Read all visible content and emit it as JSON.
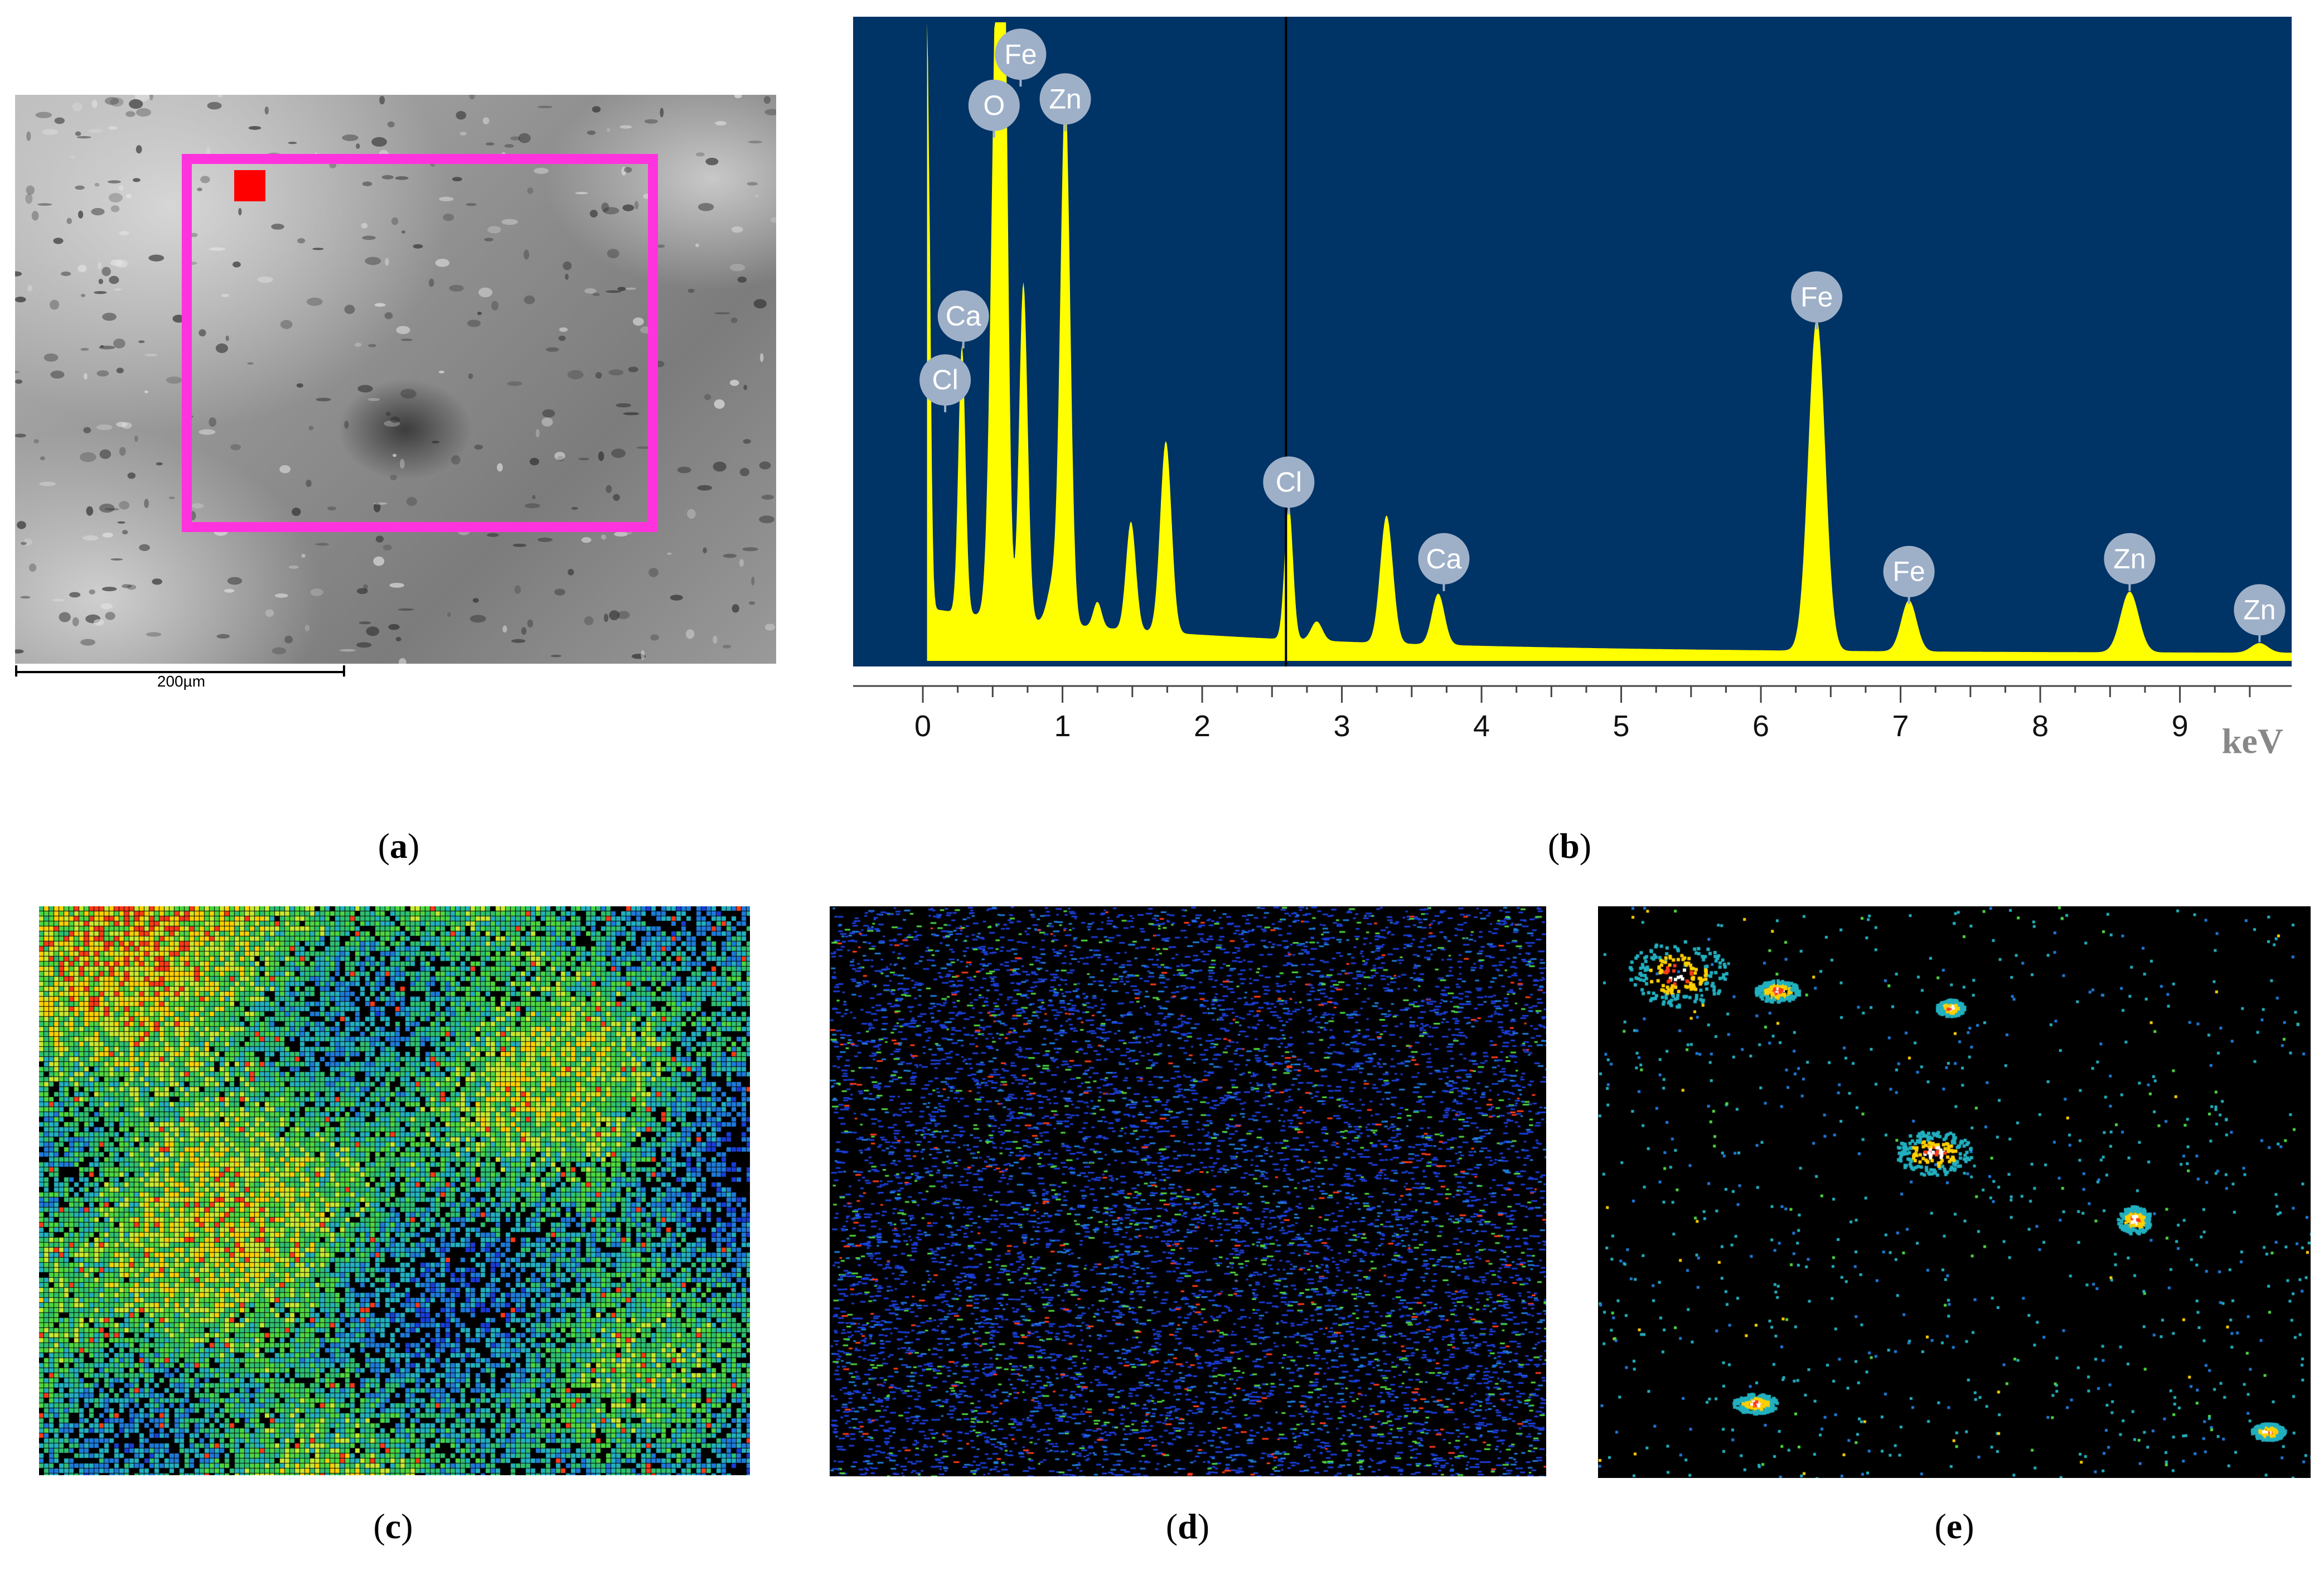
{
  "panel_a": {
    "label_letter": "a",
    "scale_bar_label": "200µm",
    "roi_color": "#ff33dd",
    "spot_color": "#ff0000"
  },
  "panel_b": {
    "label_letter": "b",
    "background_color": "#003366",
    "spectrum_color": "#ffff00",
    "marker_color": "#9eb0c8"
  },
  "panel_c": {
    "label_letter": "c"
  },
  "panel_d": {
    "label_letter": "d"
  },
  "panel_e": {
    "label_letter": "e"
  },
  "chart_data": {
    "type": "line",
    "xlabel": "keV",
    "xlim": [
      -0.1,
      9.8
    ],
    "ylim": [
      0,
      100
    ],
    "x_ticks": [
      "0",
      "1",
      "2",
      "3",
      "4",
      "5",
      "6",
      "7",
      "8",
      "9"
    ],
    "cursor_x": 2.6,
    "peaks": [
      {
        "x": 0.03,
        "y": 100,
        "w": 0.02
      },
      {
        "x": 0.28,
        "y": 42,
        "w": 0.025
      },
      {
        "x": 0.53,
        "y": 96,
        "w": 0.04
      },
      {
        "x": 0.58,
        "y": 80,
        "w": 0.03
      },
      {
        "x": 0.72,
        "y": 53,
        "w": 0.03
      },
      {
        "x": 1.02,
        "y": 83,
        "w": 0.035
      },
      {
        "x": 0.93,
        "y": 6,
        "w": 0.04
      },
      {
        "x": 1.25,
        "y": 4,
        "w": 0.03
      },
      {
        "x": 1.49,
        "y": 17,
        "w": 0.035
      },
      {
        "x": 1.74,
        "y": 30,
        "w": 0.04
      },
      {
        "x": 2.62,
        "y": 21,
        "w": 0.03
      },
      {
        "x": 2.82,
        "y": 3,
        "w": 0.04
      },
      {
        "x": 3.32,
        "y": 20,
        "w": 0.045
      },
      {
        "x": 3.69,
        "y": 8,
        "w": 0.045
      },
      {
        "x": 6.4,
        "y": 52,
        "w": 0.06
      },
      {
        "x": 7.06,
        "y": 8,
        "w": 0.055
      },
      {
        "x": 8.64,
        "y": 9.5,
        "w": 0.065
      },
      {
        "x": 9.57,
        "y": 1.5,
        "w": 0.06
      }
    ],
    "labels": [
      {
        "text": "Fe",
        "x": 0.7,
        "y": 95
      },
      {
        "text": "O",
        "x": 0.51,
        "y": 87
      },
      {
        "text": "Zn",
        "x": 1.02,
        "y": 88
      },
      {
        "text": "Ca",
        "x": 0.29,
        "y": 54
      },
      {
        "text": "Cl",
        "x": 0.16,
        "y": 44
      },
      {
        "text": "Cl",
        "x": 2.62,
        "y": 28
      },
      {
        "text": "Ca",
        "x": 3.73,
        "y": 16
      },
      {
        "text": "Fe",
        "x": 6.4,
        "y": 57
      },
      {
        "text": "Fe",
        "x": 7.06,
        "y": 14
      },
      {
        "text": "Zn",
        "x": 8.64,
        "y": 16
      },
      {
        "text": "Zn",
        "x": 9.57,
        "y": 8
      }
    ]
  }
}
